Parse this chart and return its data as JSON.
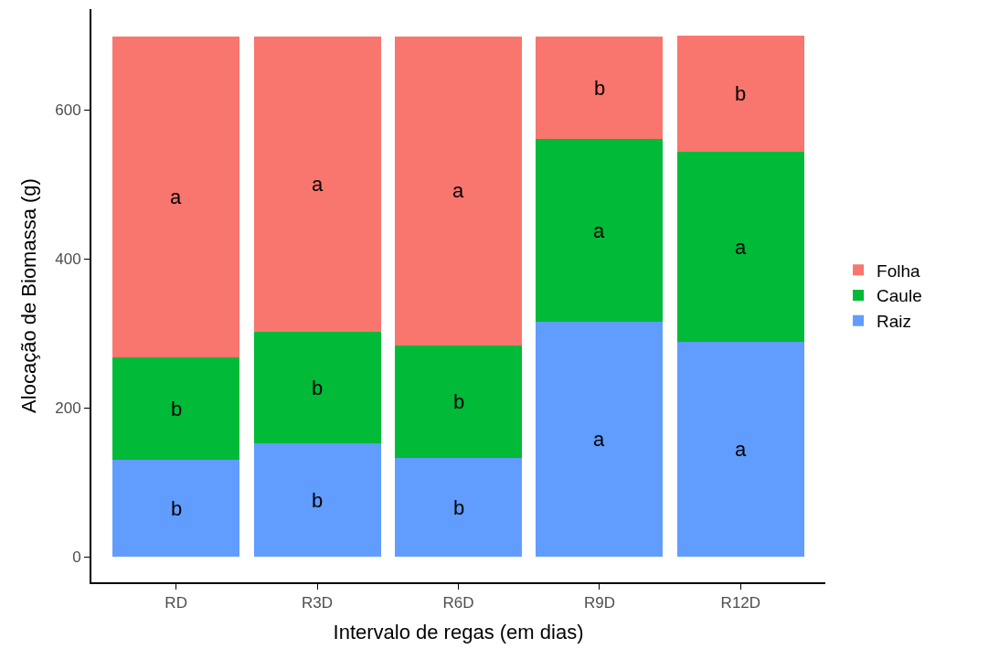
{
  "chart_data": {
    "type": "bar",
    "stacked": true,
    "xlabel": "Intervalo de regas (em dias)",
    "ylabel": "Alocação de Biomassa (g)",
    "categories": [
      "RD",
      "R3D",
      "R6D",
      "R9D",
      "R12D"
    ],
    "series": [
      {
        "name": "Raiz",
        "color": "#619cff",
        "values": [
          130,
          152,
          133,
          315,
          288
        ]
      },
      {
        "name": "Caule",
        "color": "#00ba38",
        "values": [
          138,
          150,
          151,
          246,
          256
        ]
      },
      {
        "name": "Folha",
        "color": "#f8766d",
        "values": [
          430,
          396,
          414,
          137,
          156
        ]
      }
    ],
    "ylim": [
      -34,
      735
    ],
    "yticks": [
      0,
      200,
      400,
      600
    ],
    "legend": "right",
    "annotations": [
      "b",
      "b",
      "b",
      "a",
      "a",
      "b",
      "b",
      "b",
      "a",
      "a",
      "a",
      "a",
      "a",
      "b",
      "b"
    ]
  }
}
